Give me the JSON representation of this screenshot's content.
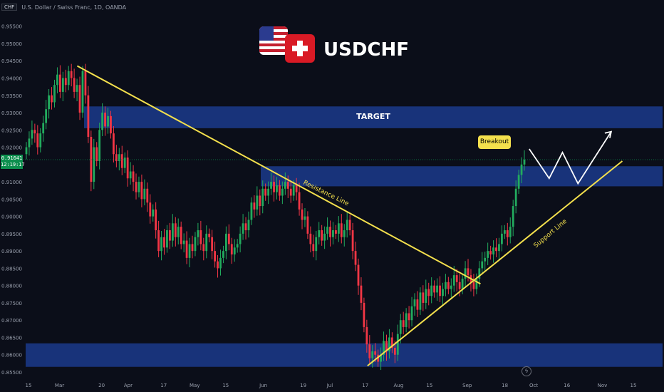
{
  "header": {
    "currency_box": "CHF",
    "symbol_info": "U.S. Dollar / Swiss Franc, 1D, OANDA"
  },
  "title": "USDCHF",
  "price_tag": {
    "price": "0.91641",
    "countdown": "12:19:17",
    "color": "#0d8f4e"
  },
  "labels": {
    "target": "TARGET",
    "breakout": "Breakout",
    "resistance": "Resistance Line",
    "support": "Support Line"
  },
  "icons": {
    "us_flag": "us-flag-icon",
    "ch_flag": "swiss-flag-icon",
    "bolt": "lightning-icon"
  },
  "colors": {
    "up": "#22ab5e",
    "down": "#f23645",
    "zone": "#1b3a8c",
    "trendline": "#f4e04d",
    "background": "#0b0e19"
  },
  "chart_data": {
    "type": "candlestick",
    "y_axis": {
      "min": 0.855,
      "max": 0.957,
      "ticks": [
        "0.95500",
        "0.95000",
        "0.94500",
        "0.94000",
        "0.93500",
        "0.93000",
        "0.92500",
        "0.92000",
        "0.91500",
        "0.91000",
        "0.90500",
        "0.90000",
        "0.89500",
        "0.89000",
        "0.88500",
        "0.88000",
        "0.87500",
        "0.87000",
        "0.86500",
        "0.86000",
        "0.85500"
      ]
    },
    "x_axis": {
      "ticks": [
        {
          "label": "15",
          "date": "2023-02-15"
        },
        {
          "label": "Mar",
          "date": "2023-03-01"
        },
        {
          "label": "20",
          "date": "2023-03-20"
        },
        {
          "label": "Apr",
          "date": "2023-04-01"
        },
        {
          "label": "17",
          "date": "2023-04-17"
        },
        {
          "label": "May",
          "date": "2023-05-01"
        },
        {
          "label": "15",
          "date": "2023-05-15"
        },
        {
          "label": "Jun",
          "date": "2023-06-01"
        },
        {
          "label": "19",
          "date": "2023-06-19"
        },
        {
          "label": "Jul",
          "date": "2023-07-01"
        },
        {
          "label": "17",
          "date": "2023-07-17"
        },
        {
          "label": "Aug",
          "date": "2023-08-01"
        },
        {
          "label": "15",
          "date": "2023-08-15"
        },
        {
          "label": "Sep",
          "date": "2023-09-01"
        },
        {
          "label": "18",
          "date": "2023-09-18"
        },
        {
          "label": "Oct",
          "date": "2023-10-01"
        },
        {
          "label": "16",
          "date": "2023-10-16"
        },
        {
          "label": "Nov",
          "date": "2023-11-01"
        },
        {
          "label": "15",
          "date": "2023-11-15"
        }
      ]
    },
    "current_price": 0.91641,
    "closes": [
      0.92,
      0.9225,
      0.925,
      0.924,
      0.92,
      0.924,
      0.927,
      0.931,
      0.935,
      0.933,
      0.938,
      0.941,
      0.936,
      0.94,
      0.938,
      0.942,
      0.94,
      0.936,
      0.938,
      0.93,
      0.942,
      0.935,
      0.923,
      0.91,
      0.92,
      0.916,
      0.925,
      0.93,
      0.926,
      0.929,
      0.924,
      0.918,
      0.916,
      0.918,
      0.914,
      0.917,
      0.911,
      0.913,
      0.91,
      0.907,
      0.91,
      0.905,
      0.908,
      0.904,
      0.9,
      0.902,
      0.896,
      0.89,
      0.894,
      0.891,
      0.896,
      0.893,
      0.898,
      0.894,
      0.897,
      0.892,
      0.893,
      0.888,
      0.892,
      0.89,
      0.894,
      0.896,
      0.892,
      0.89,
      0.895,
      0.894,
      0.89,
      0.887,
      0.885,
      0.888,
      0.89,
      0.895,
      0.892,
      0.889,
      0.891,
      0.892,
      0.895,
      0.898,
      0.896,
      0.899,
      0.904,
      0.902,
      0.906,
      0.903,
      0.908,
      0.906,
      0.908,
      0.91,
      0.907,
      0.909,
      0.906,
      0.908,
      0.91,
      0.908,
      0.906,
      0.909,
      0.907,
      0.902,
      0.899,
      0.9,
      0.895,
      0.892,
      0.89,
      0.894,
      0.896,
      0.893,
      0.895,
      0.897,
      0.894,
      0.896,
      0.895,
      0.898,
      0.894,
      0.896,
      0.899,
      0.896,
      0.89,
      0.886,
      0.88,
      0.875,
      0.868,
      0.863,
      0.859,
      0.861,
      0.86,
      0.858,
      0.86,
      0.864,
      0.861,
      0.865,
      0.862,
      0.86,
      0.866,
      0.87,
      0.868,
      0.872,
      0.87,
      0.874,
      0.876,
      0.873,
      0.878,
      0.875,
      0.879,
      0.877,
      0.88,
      0.878,
      0.88,
      0.877,
      0.879,
      0.881,
      0.879,
      0.88,
      0.883,
      0.881,
      0.879,
      0.882,
      0.885,
      0.883,
      0.881,
      0.879,
      0.882,
      0.885,
      0.887,
      0.888,
      0.89,
      0.889,
      0.891,
      0.89,
      0.892,
      0.895,
      0.896,
      0.894,
      0.897,
      0.903,
      0.908,
      0.912,
      0.915,
      0.9164
    ],
    "zones": [
      {
        "name": "TARGET",
        "from": 0.9255,
        "to": 0.9318
      },
      {
        "name": "breakout-zone",
        "from": 0.9087,
        "to": 0.9145
      },
      {
        "name": "support-zone",
        "from": 0.8565,
        "to": 0.8633
      }
    ],
    "trendlines": [
      {
        "name": "Resistance Line",
        "from_date": "2023-03-09",
        "from_price": 0.9435,
        "to_date": "2023-09-07",
        "to_price": 0.8805
      },
      {
        "name": "Support Line",
        "from_date": "2023-07-18",
        "from_price": 0.8568,
        "to_date": "2023-11-10",
        "to_price": 0.916
      }
    ],
    "projection_path": [
      {
        "date": "2023-09-29",
        "price": 0.9195
      },
      {
        "date": "2023-10-08",
        "price": 0.911
      },
      {
        "date": "2023-10-14",
        "price": 0.9185
      },
      {
        "date": "2023-10-21",
        "price": 0.9095
      },
      {
        "date": "2023-11-05",
        "price": 0.9245
      }
    ]
  }
}
